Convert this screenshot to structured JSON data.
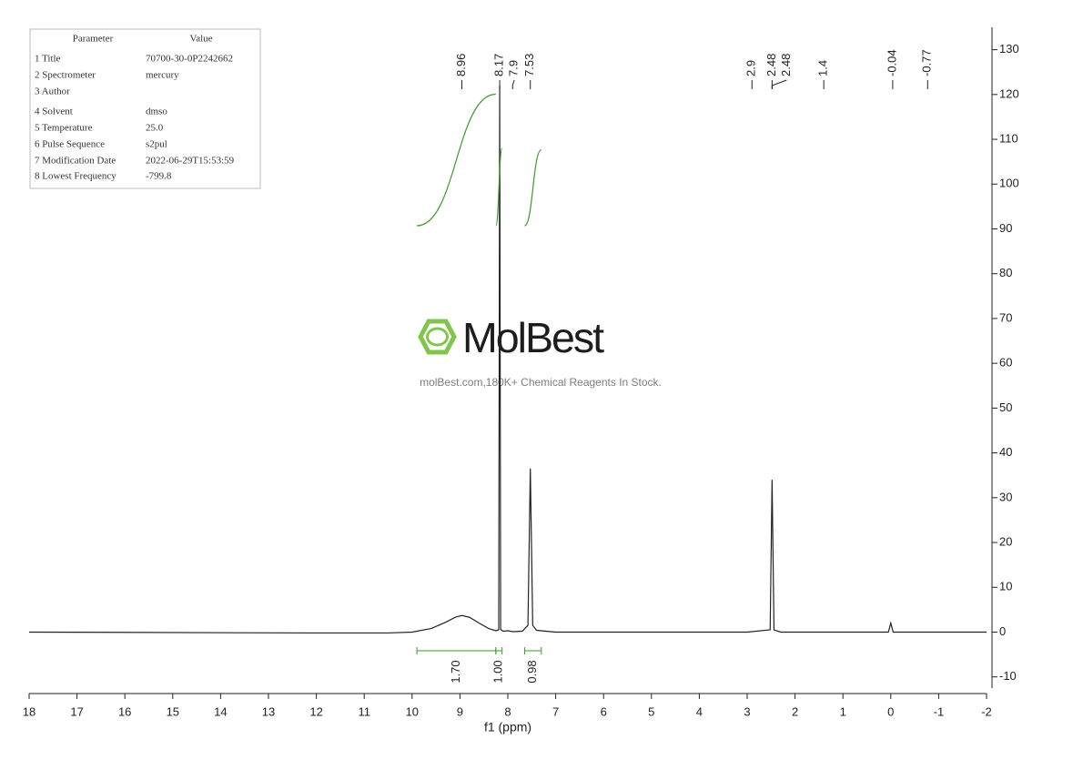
{
  "chart_data": {
    "type": "line",
    "x_label": "f1 (ppm)",
    "xlim": [
      18,
      -2
    ],
    "xticks": [
      18,
      17,
      16,
      15,
      14,
      13,
      12,
      11,
      10,
      9,
      8,
      7,
      6,
      5,
      4,
      3,
      2,
      1,
      0,
      -1,
      -2
    ],
    "ylim": [
      -12.5,
      135
    ],
    "yticks": [
      -10,
      0,
      10,
      20,
      30,
      40,
      50,
      60,
      70,
      80,
      90,
      100,
      110,
      120,
      130
    ],
    "series": [
      {
        "color": "#222222",
        "x": [
          18,
          12,
          10.5,
          10,
          9.6,
          9.3,
          9.1,
          8.96,
          8.8,
          8.6,
          8.4,
          8.25,
          8.19,
          8.17,
          8.15,
          8.1,
          8.0,
          7.9,
          7.7,
          7.58,
          7.53,
          7.48,
          7.4,
          7.0,
          3.0,
          2.52,
          2.48,
          2.44,
          2.3,
          0.05,
          0.0,
          -0.05,
          -2
        ],
        "values": [
          0,
          -0.2,
          -0.2,
          0,
          0.8,
          2.2,
          3.3,
          3.7,
          3.3,
          2.0,
          0.8,
          0.3,
          0.5,
          122,
          0.6,
          0.2,
          0.3,
          0.1,
          0.2,
          1.5,
          36.5,
          1.5,
          0.4,
          0,
          0,
          0.5,
          34,
          0.5,
          0,
          0,
          2,
          0,
          0
        ]
      }
    ],
    "peak_labels": [
      8.96,
      8.17,
      7.9,
      7.53,
      2.9,
      2.48,
      2.48,
      1.4,
      -0.04,
      -0.77
    ],
    "integrals": {
      "color": "#3a9a2a",
      "values": [
        1.7,
        1.0,
        0.98
      ],
      "value_labels": [
        "1.70",
        "1.00",
        "0.98"
      ],
      "ranges": [
        [
          9.9,
          8.25
        ],
        [
          8.25,
          8.12
        ],
        [
          7.65,
          7.3
        ]
      ]
    }
  },
  "parameters": {
    "header": [
      "Parameter",
      "Value"
    ],
    "rows": [
      [
        "1 Title",
        "70700-30-0P2242662"
      ],
      [
        "2 Spectrometer",
        "mercury"
      ],
      [
        "3 Author"
      ],
      [
        "4 Solvent",
        "dmso"
      ],
      [
        "5 Temperature",
        "25.0"
      ],
      [
        "6 Pulse Sequence",
        "s2pul"
      ],
      [
        "7 Modification Date",
        "2022-06-29T15:53:59"
      ],
      [
        "8 Lowest Frequency",
        "-799.8"
      ]
    ]
  },
  "watermark": {
    "logo": "MolBest",
    "tagline": "molBest.com,180K+ Chemical Reagents In Stock."
  }
}
